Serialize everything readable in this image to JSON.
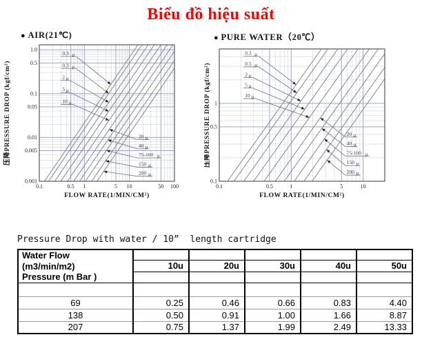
{
  "page_title": "Biểu đồ hiệu suất",
  "colors": {
    "title_red": "#ff0000",
    "grid_minor": "#ccd0e8",
    "grid_major": "#9da3cf",
    "plot_border": "#55555e",
    "curve_gray": "#84848e",
    "leader_gray": "#6f6f78",
    "table_border": "#000000",
    "table_row_line": "#9a9a9a"
  },
  "chart_data": [
    {
      "type": "line",
      "bullet": "●",
      "title": "AIR(21℃)",
      "xlabel": "FLOW RATE(1/MIN/CM²)",
      "ylabel": "压降PRESSURE DROP (kgf/cm²)",
      "x_axis": {
        "scale": "log",
        "min": 0.1,
        "max": 100,
        "tick_values": [
          0.1,
          0.5,
          1,
          5,
          10,
          50,
          100
        ],
        "tick_labels": [
          "0.1",
          "0.5",
          "1",
          "5",
          "10",
          "50",
          "100"
        ]
      },
      "y_axis": {
        "scale": "log",
        "min": 0.001,
        "max": 1.3,
        "tick_values": [
          1.0,
          0.5,
          0.1,
          0.05,
          0.01,
          0.005,
          0.001
        ],
        "tick_labels": [
          "1.0",
          "0.5",
          "0.1",
          "0.05",
          "0.01",
          "0.005",
          "0.001"
        ]
      },
      "loglog_slope": 1.5,
      "series": [
        {
          "label": "0.3",
          "unit": "μ",
          "x_at_ymin": 0.13,
          "label_side": "top"
        },
        {
          "label": "0.3",
          "unit": "μ",
          "x_at_ymin": 0.16,
          "label_side": "top"
        },
        {
          "label": "2",
          "unit": "μ",
          "x_at_ymin": 0.22,
          "label_side": "top"
        },
        {
          "label": "5",
          "unit": "μ",
          "x_at_ymin": 0.3,
          "label_side": "top"
        },
        {
          "label": "10",
          "unit": "μ",
          "x_at_ymin": 0.42,
          "label_side": "top"
        },
        {
          "label": "20",
          "unit": "μ",
          "x_at_ymin": 0.58,
          "label_side": "bottom"
        },
        {
          "label": "40",
          "unit": "μ",
          "x_at_ymin": 0.78,
          "label_side": "bottom"
        },
        {
          "label": "75-100",
          "unit": "μ",
          "x_at_ymin": 1.05,
          "label_side": "bottom"
        },
        {
          "label": "150",
          "unit": "μ",
          "x_at_ymin": 1.45,
          "label_side": "bottom"
        },
        {
          "label": "200",
          "unit": "μ",
          "x_at_ymin": 1.9,
          "label_side": "bottom"
        }
      ]
    },
    {
      "type": "line",
      "bullet": "●",
      "title": "PURE WATER（20℃）",
      "xlabel": "FLOW RATE(1/MIN/CM²)",
      "ylabel": "压降PRESSURE DROP (kgf/cm²)",
      "x_axis": {
        "scale": "log",
        "min": 0.1,
        "max": 20,
        "tick_values": [
          0.1,
          0.5,
          1,
          5,
          10
        ],
        "tick_labels": [
          "0.1",
          "0.5",
          "1",
          "5",
          "10"
        ]
      },
      "y_axis": {
        "scale": "log",
        "min": 0.1,
        "max": 5,
        "tick_values": [
          1,
          0.5,
          0.1
        ],
        "tick_labels": [
          "1",
          "0.5",
          "0.1"
        ]
      },
      "loglog_slope": 1.3,
      "series": [
        {
          "label": "0.3",
          "unit": "μ",
          "x_at_ymin": 0.13,
          "label_side": "top"
        },
        {
          "label": "0.5",
          "unit": "μ",
          "x_at_ymin": 0.16,
          "label_side": "top"
        },
        {
          "label": "2",
          "unit": "μ",
          "x_at_ymin": 0.22,
          "label_side": "top"
        },
        {
          "label": "5",
          "unit": "μ",
          "x_at_ymin": 0.3,
          "label_side": "top"
        },
        {
          "label": "10",
          "unit": "μ",
          "x_at_ymin": 0.42,
          "label_side": "top"
        },
        {
          "label": "20",
          "unit": "μ",
          "x_at_ymin": 0.6,
          "label_side": "bottom"
        },
        {
          "label": "40",
          "unit": "μ",
          "x_at_ymin": 0.8,
          "label_side": "bottom"
        },
        {
          "label": "75-100",
          "unit": "μ",
          "x_at_ymin": 1.1,
          "label_side": "bottom"
        },
        {
          "label": "150",
          "unit": "μ",
          "x_at_ymin": 1.5,
          "label_side": "bottom"
        },
        {
          "label": "200",
          "unit": "μ",
          "x_at_ymin": 1.95,
          "label_side": "bottom"
        }
      ]
    },
    {
      "type": "table",
      "title": "Pressure Drop with water / 10”  length cartridge",
      "header_col1_lines": [
        "Water Flow",
        "(m3/min/m2)",
        "Pressure (m Bar )"
      ],
      "micron_columns": [
        "10u",
        "20u",
        "30u",
        "40u",
        "50u"
      ],
      "rows": [
        {
          "water_flow": "69",
          "pressures": [
            "0.25",
            "0.46",
            "0.66",
            "0.83",
            "4.40"
          ]
        },
        {
          "water_flow": "138",
          "pressures": [
            "0.50",
            "0.91",
            "1.00",
            "1.66",
            "8.87"
          ]
        },
        {
          "water_flow": "207",
          "pressures": [
            "0.75",
            "1.37",
            "1.99",
            "2.49",
            "13.33"
          ]
        }
      ]
    }
  ]
}
